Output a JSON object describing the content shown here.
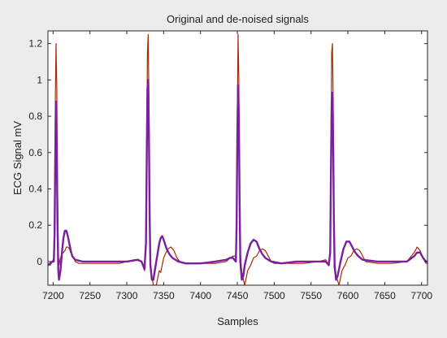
{
  "chart_data": {
    "type": "line",
    "title": "Original and de-noised signals",
    "xlabel": "Samples",
    "ylabel": "ECG Signal mV",
    "xlim": [
      7193,
      7708
    ],
    "ylim": [
      -0.13,
      1.27
    ],
    "xticks": [
      7200,
      7250,
      7300,
      7350,
      7400,
      7450,
      7500,
      7550,
      7600,
      7650,
      7700
    ],
    "yticks": [
      0,
      0.2,
      0.4,
      0.6,
      0.8,
      1,
      1.2
    ],
    "ytick_labels": [
      "0",
      "0.2",
      "0.4",
      "0.6",
      "0.8",
      "1",
      "1.2"
    ],
    "grid": false,
    "legend": "none",
    "series": [
      {
        "color": "#a52a0a",
        "stroke_width": 1.2,
        "points": [
          [
            7193,
            -0.01
          ],
          [
            7196,
            -0.02
          ],
          [
            7199,
            0.0
          ],
          [
            7201,
            0.02
          ],
          [
            7202,
            0.3
          ],
          [
            7203,
            0.88
          ],
          [
            7204,
            1.2
          ],
          [
            7205,
            0.95
          ],
          [
            7206,
            0.4
          ],
          [
            7207,
            0.05
          ],
          [
            7208,
            -0.02
          ],
          [
            7210,
            0.02
          ],
          [
            7212,
            0.04
          ],
          [
            7214,
            0.05
          ],
          [
            7216,
            0.06
          ],
          [
            7218,
            0.08
          ],
          [
            7220,
            0.08
          ],
          [
            7222,
            0.07
          ],
          [
            7224,
            0.05
          ],
          [
            7226,
            0.03
          ],
          [
            7228,
            0.02
          ],
          [
            7230,
            0.0
          ],
          [
            7235,
            -0.01
          ],
          [
            7250,
            -0.01
          ],
          [
            7270,
            -0.01
          ],
          [
            7290,
            -0.01
          ],
          [
            7300,
            0.0
          ],
          [
            7310,
            0.01
          ],
          [
            7320,
            0.0
          ],
          [
            7324,
            -0.05
          ],
          [
            7326,
            0.1
          ],
          [
            7327,
            0.6
          ],
          [
            7328,
            1.15
          ],
          [
            7329,
            1.25
          ],
          [
            7330,
            0.9
          ],
          [
            7331,
            0.3
          ],
          [
            7332,
            0.0
          ],
          [
            7334,
            -0.08
          ],
          [
            7336,
            -0.13
          ],
          [
            7340,
            -0.13
          ],
          [
            7344,
            -0.05
          ],
          [
            7346,
            -0.06
          ],
          [
            7348,
            -0.02
          ],
          [
            7350,
            0.02
          ],
          [
            7352,
            0.04
          ],
          [
            7356,
            0.07
          ],
          [
            7360,
            0.08
          ],
          [
            7364,
            0.06
          ],
          [
            7368,
            0.02
          ],
          [
            7372,
            0.0
          ],
          [
            7380,
            -0.01
          ],
          [
            7400,
            -0.01
          ],
          [
            7420,
            -0.01
          ],
          [
            7435,
            0.0
          ],
          [
            7440,
            0.02
          ],
          [
            7444,
            0.03
          ],
          [
            7448,
            0.03
          ],
          [
            7449,
            0.2
          ],
          [
            7450,
            0.85
          ],
          [
            7451,
            1.25
          ],
          [
            7452,
            1.0
          ],
          [
            7453,
            0.4
          ],
          [
            7454,
            0.05
          ],
          [
            7456,
            -0.06
          ],
          [
            7460,
            -0.13
          ],
          [
            7464,
            -0.05
          ],
          [
            7468,
            -0.02
          ],
          [
            7472,
            0.02
          ],
          [
            7476,
            0.03
          ],
          [
            7480,
            0.06
          ],
          [
            7484,
            0.07
          ],
          [
            7488,
            0.06
          ],
          [
            7492,
            0.03
          ],
          [
            7496,
            0.0
          ],
          [
            7500,
            -0.01
          ],
          [
            7520,
            -0.01
          ],
          [
            7540,
            -0.01
          ],
          [
            7560,
            0.0
          ],
          [
            7570,
            0.01
          ],
          [
            7574,
            -0.02
          ],
          [
            7576,
            0.05
          ],
          [
            7577,
            0.6
          ],
          [
            7578,
            1.15
          ],
          [
            7579,
            1.2
          ],
          [
            7580,
            0.9
          ],
          [
            7581,
            0.3
          ],
          [
            7582,
            0.0
          ],
          [
            7584,
            -0.08
          ],
          [
            7588,
            -0.13
          ],
          [
            7592,
            -0.05
          ],
          [
            7596,
            -0.02
          ],
          [
            7600,
            0.02
          ],
          [
            7604,
            0.03
          ],
          [
            7608,
            0.06
          ],
          [
            7612,
            0.07
          ],
          [
            7616,
            0.06
          ],
          [
            7620,
            0.03
          ],
          [
            7624,
            0.0
          ],
          [
            7640,
            -0.01
          ],
          [
            7660,
            -0.01
          ],
          [
            7680,
            0.0
          ],
          [
            7690,
            0.05
          ],
          [
            7694,
            0.08
          ],
          [
            7698,
            0.06
          ],
          [
            7702,
            0.02
          ],
          [
            7706,
            -0.01
          ],
          [
            7708,
            -0.01
          ]
        ]
      },
      {
        "color": "#7a1f9e",
        "stroke_width": 2.4,
        "points": [
          [
            7193,
            -0.02
          ],
          [
            7196,
            -0.01
          ],
          [
            7199,
            0.0
          ],
          [
            7201,
            0.0
          ],
          [
            7202,
            0.15
          ],
          [
            7203,
            0.6
          ],
          [
            7204,
            0.88
          ],
          [
            7205,
            0.6
          ],
          [
            7206,
            0.2
          ],
          [
            7207,
            -0.05
          ],
          [
            7208,
            -0.1
          ],
          [
            7210,
            -0.05
          ],
          [
            7212,
            0.05
          ],
          [
            7214,
            0.13
          ],
          [
            7216,
            0.17
          ],
          [
            7218,
            0.17
          ],
          [
            7220,
            0.14
          ],
          [
            7222,
            0.1
          ],
          [
            7224,
            0.06
          ],
          [
            7226,
            0.03
          ],
          [
            7230,
            0.01
          ],
          [
            7240,
            0.0
          ],
          [
            7260,
            0.0
          ],
          [
            7280,
            0.0
          ],
          [
            7300,
            0.0
          ],
          [
            7315,
            0.01
          ],
          [
            7320,
            0.0
          ],
          [
            7324,
            -0.04
          ],
          [
            7326,
            0.1
          ],
          [
            7327,
            0.55
          ],
          [
            7328,
            0.95
          ],
          [
            7329,
            1.0
          ],
          [
            7330,
            0.7
          ],
          [
            7331,
            0.25
          ],
          [
            7332,
            -0.02
          ],
          [
            7334,
            -0.1
          ],
          [
            7336,
            -0.1
          ],
          [
            7338,
            -0.05
          ],
          [
            7340,
            0.0
          ],
          [
            7342,
            0.05
          ],
          [
            7344,
            0.1
          ],
          [
            7346,
            0.13
          ],
          [
            7348,
            0.14
          ],
          [
            7350,
            0.12
          ],
          [
            7354,
            0.07
          ],
          [
            7358,
            0.04
          ],
          [
            7362,
            0.02
          ],
          [
            7370,
            0.0
          ],
          [
            7380,
            -0.01
          ],
          [
            7400,
            -0.01
          ],
          [
            7420,
            0.0
          ],
          [
            7435,
            0.01
          ],
          [
            7440,
            0.02
          ],
          [
            7444,
            0.02
          ],
          [
            7448,
            0.0
          ],
          [
            7449,
            0.2
          ],
          [
            7450,
            0.7
          ],
          [
            7451,
            0.97
          ],
          [
            7452,
            0.8
          ],
          [
            7453,
            0.35
          ],
          [
            7454,
            0.0
          ],
          [
            7456,
            -0.1
          ],
          [
            7458,
            -0.08
          ],
          [
            7460,
            -0.02
          ],
          [
            7464,
            0.05
          ],
          [
            7468,
            0.1
          ],
          [
            7472,
            0.12
          ],
          [
            7476,
            0.11
          ],
          [
            7480,
            0.07
          ],
          [
            7484,
            0.04
          ],
          [
            7488,
            0.02
          ],
          [
            7496,
            0.0
          ],
          [
            7510,
            -0.01
          ],
          [
            7530,
            0.0
          ],
          [
            7550,
            0.0
          ],
          [
            7565,
            0.0
          ],
          [
            7570,
            0.0
          ],
          [
            7574,
            -0.02
          ],
          [
            7576,
            0.05
          ],
          [
            7577,
            0.5
          ],
          [
            7578,
            0.88
          ],
          [
            7579,
            0.93
          ],
          [
            7580,
            0.65
          ],
          [
            7581,
            0.22
          ],
          [
            7582,
            -0.03
          ],
          [
            7584,
            -0.1
          ],
          [
            7586,
            -0.08
          ],
          [
            7590,
            0.0
          ],
          [
            7594,
            0.07
          ],
          [
            7598,
            0.11
          ],
          [
            7602,
            0.11
          ],
          [
            7606,
            0.08
          ],
          [
            7610,
            0.05
          ],
          [
            7614,
            0.03
          ],
          [
            7620,
            0.01
          ],
          [
            7640,
            0.0
          ],
          [
            7660,
            0.0
          ],
          [
            7680,
            0.0
          ],
          [
            7690,
            0.03
          ],
          [
            7694,
            0.05
          ],
          [
            7698,
            0.05
          ],
          [
            7702,
            0.02
          ],
          [
            7706,
            0.0
          ],
          [
            7708,
            0.0
          ]
        ]
      }
    ]
  }
}
